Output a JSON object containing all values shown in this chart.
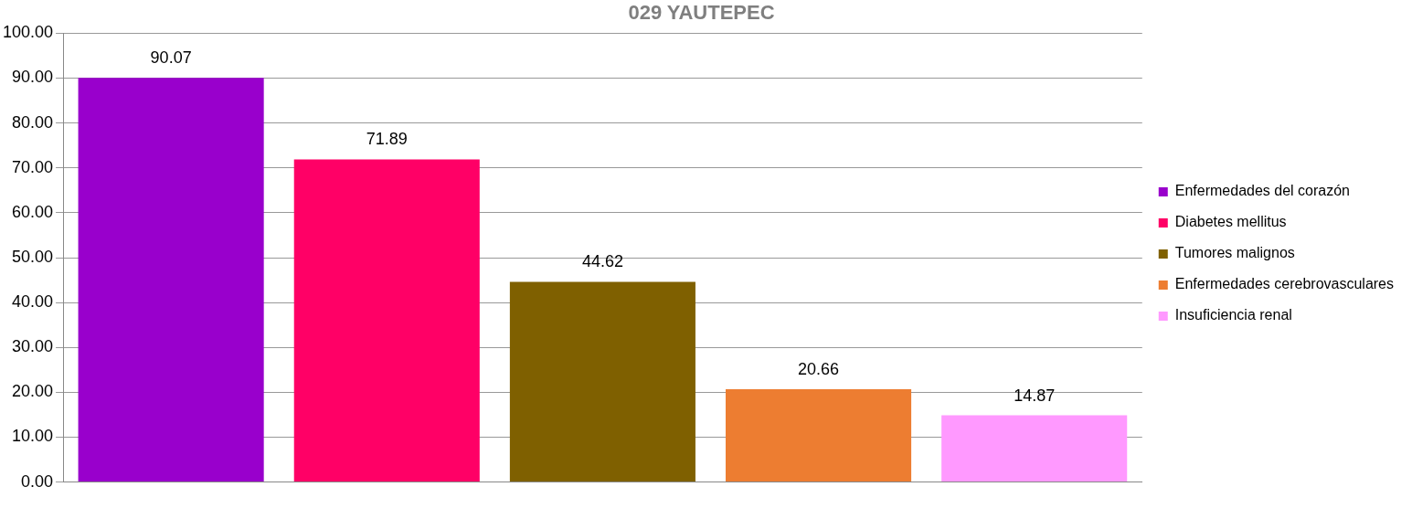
{
  "chart_data": {
    "type": "bar",
    "title": "029 YAUTEPEC",
    "categories": [
      null
    ],
    "series": [
      {
        "name": "Enfermedades del corazón",
        "color": "#9900cc",
        "values": [
          90.07
        ]
      },
      {
        "name": "Diabetes mellitus",
        "color": "#ff0066",
        "values": [
          71.89
        ]
      },
      {
        "name": "Tumores malignos",
        "color": "#7f6000",
        "values": [
          44.62
        ]
      },
      {
        "name": "Enfermedades cerebrovasculares",
        "color": "#ed7d31",
        "values": [
          20.66
        ]
      },
      {
        "name": "Insuficiencia renal",
        "color": "#ff99ff",
        "values": [
          14.87
        ]
      }
    ],
    "ylim": [
      0,
      100
    ],
    "yticks": [
      {
        "value": 0,
        "label": "0.00"
      },
      {
        "value": 10,
        "label": "10.00"
      },
      {
        "value": 20,
        "label": "20.00"
      },
      {
        "value": 30,
        "label": "30.00"
      },
      {
        "value": 40,
        "label": "40.00"
      },
      {
        "value": 50,
        "label": "50.00"
      },
      {
        "value": 60,
        "label": "60.00"
      },
      {
        "value": 70,
        "label": "70.00"
      },
      {
        "value": 80,
        "label": "80.00"
      },
      {
        "value": 90,
        "label": "90.00"
      },
      {
        "value": 100,
        "label": "100.00"
      }
    ],
    "grid": "y",
    "legend": "right",
    "data_labels": true
  }
}
